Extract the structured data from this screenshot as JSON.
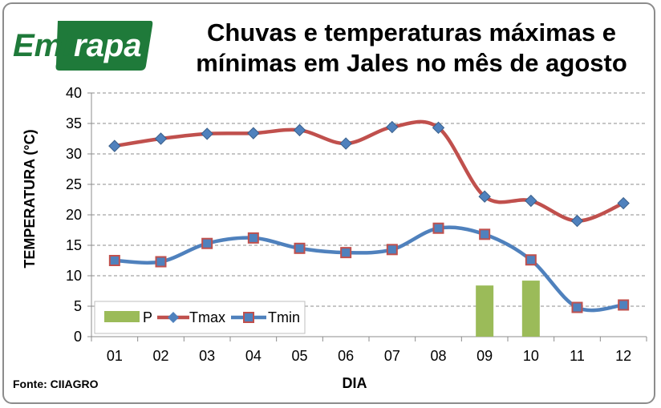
{
  "logo": {
    "text": "Embrapa",
    "color": "#1f7a3a",
    "accent": "#ffffff"
  },
  "title": {
    "line1": "Chuvas e temperaturas máximas e",
    "line2": "mínimas em Jales no mês de agosto"
  },
  "source": "Fonte: CIIAGRO",
  "chart_data": {
    "type": "line",
    "categories": [
      "01",
      "02",
      "03",
      "04",
      "05",
      "06",
      "07",
      "08",
      "09",
      "10",
      "11",
      "12"
    ],
    "series": [
      {
        "name": "P",
        "kind": "bar",
        "color": "#9bbb59",
        "values": [
          0,
          0,
          0,
          0,
          0,
          0,
          0,
          0,
          8.4,
          9.2,
          0,
          0
        ]
      },
      {
        "name": "Tmax",
        "kind": "line",
        "marker": "diamond",
        "color": "#c0504d",
        "values": [
          31.3,
          32.5,
          33.3,
          33.4,
          33.9,
          31.7,
          34.4,
          34.3,
          23.0,
          22.3,
          19.0,
          21.9
        ]
      },
      {
        "name": "Tmin",
        "kind": "line",
        "marker": "square",
        "color": "#4f81bd",
        "values": [
          12.5,
          12.3,
          15.3,
          16.2,
          14.5,
          13.8,
          14.3,
          17.8,
          16.8,
          12.6,
          4.8,
          5.2
        ]
      }
    ],
    "xlabel": "DIA",
    "ylabel": "TEMPERATURA (°C)",
    "ylim": [
      0,
      40
    ],
    "yticks": [
      0,
      5,
      10,
      15,
      20,
      25,
      30,
      35,
      40
    ],
    "grid": true,
    "legend": "bottom-left"
  }
}
